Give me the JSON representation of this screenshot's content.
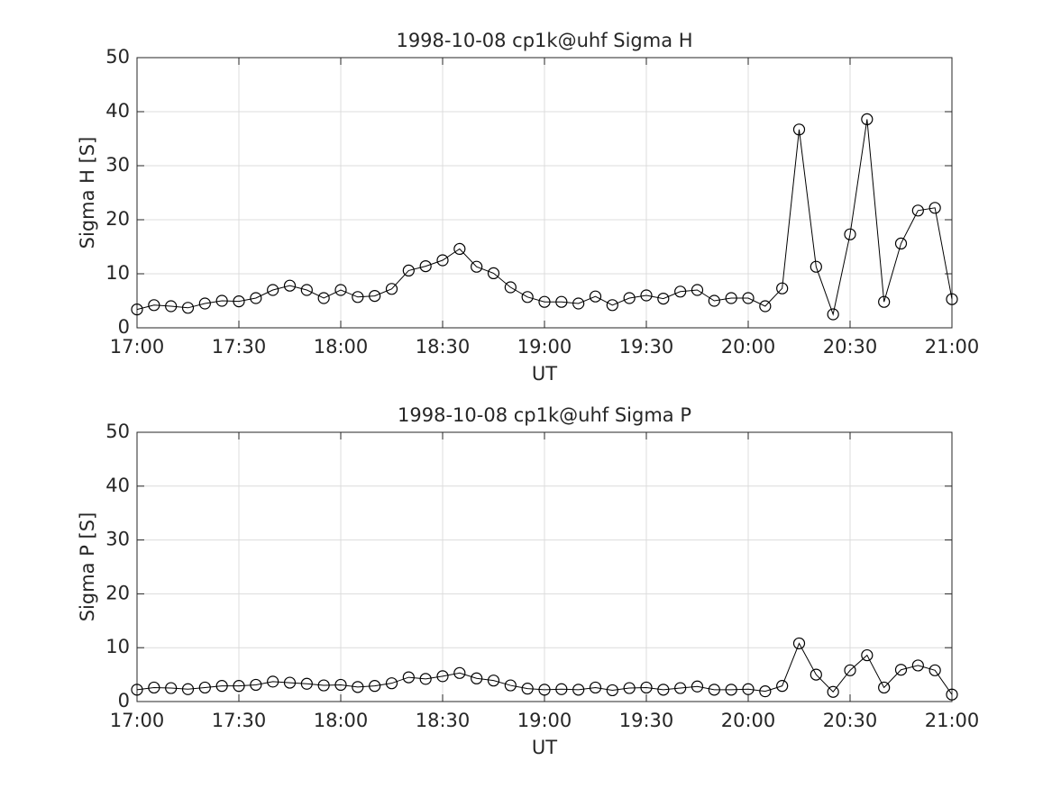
{
  "chart_data": [
    {
      "type": "line",
      "title": "1998-10-08  cp1k@uhf Sigma H",
      "xlabel": "UT",
      "ylabel": "Sigma H [S]",
      "x": [
        "17:00",
        "17:05",
        "17:10",
        "17:15",
        "17:20",
        "17:25",
        "17:30",
        "17:35",
        "17:40",
        "17:45",
        "17:50",
        "17:55",
        "18:00",
        "18:05",
        "18:10",
        "18:15",
        "18:20",
        "18:25",
        "18:30",
        "18:35",
        "18:40",
        "18:45",
        "18:50",
        "18:55",
        "19:00",
        "19:05",
        "19:10",
        "19:15",
        "19:20",
        "19:25",
        "19:30",
        "19:35",
        "19:40",
        "19:45",
        "19:50",
        "19:55",
        "20:00",
        "20:05",
        "20:10",
        "20:15",
        "20:20",
        "20:25",
        "20:30",
        "20:35",
        "20:40",
        "20:45",
        "20:50",
        "20:55",
        "21:00"
      ],
      "values": [
        3.4,
        4.2,
        4.0,
        3.7,
        4.5,
        5.0,
        4.9,
        5.5,
        7.0,
        7.8,
        7.0,
        5.5,
        7.0,
        5.7,
        5.9,
        7.2,
        10.6,
        11.4,
        12.5,
        14.6,
        11.3,
        10.1,
        7.5,
        5.7,
        4.8,
        4.8,
        4.5,
        5.8,
        4.2,
        5.5,
        6.0,
        5.4,
        6.7,
        7.0,
        5.0,
        5.5,
        5.5,
        4.0,
        7.3,
        36.7,
        11.3,
        2.5,
        17.3,
        38.6,
        4.8,
        15.6,
        21.7,
        22.2,
        5.3
      ],
      "color": "#000000",
      "marker": "circle",
      "xlim": [
        "17:00",
        "21:00"
      ],
      "xticks": [
        "17:00",
        "17:30",
        "18:00",
        "18:30",
        "19:00",
        "19:30",
        "20:00",
        "20:30",
        "21:00"
      ],
      "ylim": [
        0,
        50
      ],
      "yticks": [
        0,
        10,
        20,
        30,
        40,
        50
      ],
      "grid": true
    },
    {
      "type": "line",
      "title": "1998-10-08  cp1k@uhf Sigma P",
      "xlabel": "UT",
      "ylabel": "Sigma P [S]",
      "x": [
        "17:00",
        "17:05",
        "17:10",
        "17:15",
        "17:20",
        "17:25",
        "17:30",
        "17:35",
        "17:40",
        "17:45",
        "17:50",
        "17:55",
        "18:00",
        "18:05",
        "18:10",
        "18:15",
        "18:20",
        "18:25",
        "18:30",
        "18:35",
        "18:40",
        "18:45",
        "18:50",
        "18:55",
        "19:00",
        "19:05",
        "19:10",
        "19:15",
        "19:20",
        "19:25",
        "19:30",
        "19:35",
        "19:40",
        "19:45",
        "19:50",
        "19:55",
        "20:00",
        "20:05",
        "20:10",
        "20:15",
        "20:20",
        "20:25",
        "20:30",
        "20:35",
        "20:40",
        "20:45",
        "20:50",
        "20:55",
        "21:00"
      ],
      "values": [
        2.2,
        2.6,
        2.5,
        2.3,
        2.6,
        2.9,
        2.9,
        3.1,
        3.7,
        3.5,
        3.3,
        3.0,
        3.1,
        2.7,
        2.9,
        3.4,
        4.5,
        4.2,
        4.7,
        5.3,
        4.3,
        3.9,
        3.0,
        2.4,
        2.2,
        2.3,
        2.2,
        2.6,
        2.1,
        2.5,
        2.6,
        2.2,
        2.5,
        2.8,
        2.2,
        2.2,
        2.3,
        1.9,
        2.9,
        10.8,
        5.0,
        1.8,
        5.8,
        8.6,
        2.6,
        5.9,
        6.7,
        5.8,
        1.3
      ],
      "color": "#000000",
      "marker": "circle",
      "xlim": [
        "17:00",
        "21:00"
      ],
      "xticks": [
        "17:00",
        "17:30",
        "18:00",
        "18:30",
        "19:00",
        "19:30",
        "20:00",
        "20:30",
        "21:00"
      ],
      "ylim": [
        0,
        50
      ],
      "yticks": [
        0,
        10,
        20,
        30,
        40,
        50
      ],
      "grid": true
    }
  ]
}
